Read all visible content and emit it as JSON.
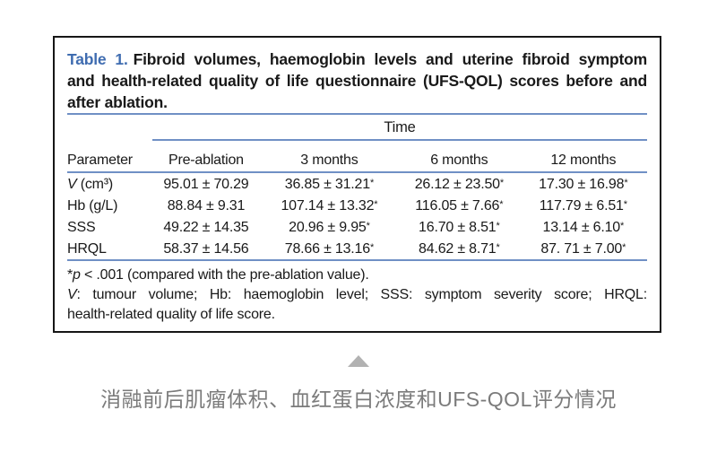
{
  "card": {
    "title": {
      "label": "Table 1.",
      "line1": "Fibroid volumes, haemoglobin levels and uterine fibroid symptom",
      "line2": "and health-related quality of life questionnaire (UFS-QOL) scores before and",
      "line3": "after ablation."
    },
    "spanner": "Time",
    "columns": [
      "Parameter",
      "Pre-ablation",
      "3 months",
      "6 months",
      "12 months"
    ],
    "star_symbol": "*",
    "rows": [
      {
        "param": "V (cm³)",
        "param_italic_first": true,
        "values": [
          {
            "v": "95.01 ± 70.29",
            "star": false
          },
          {
            "v": "36.85 ± 31.21",
            "star": true
          },
          {
            "v": "26.12 ± 23.50",
            "star": true
          },
          {
            "v": "17.30 ± 16.98",
            "star": true
          }
        ]
      },
      {
        "param": "Hb (g/L)",
        "param_italic_first": false,
        "values": [
          {
            "v": "88.84 ± 9.31",
            "star": false
          },
          {
            "v": "107.14 ± 13.32",
            "star": true
          },
          {
            "v": "116.05 ± 7.66",
            "star": true
          },
          {
            "v": "117.79 ± 6.51",
            "star": true
          }
        ]
      },
      {
        "param": "SSS",
        "param_italic_first": false,
        "values": [
          {
            "v": "49.22 ± 14.35",
            "star": false
          },
          {
            "v": "20.96 ± 9.95",
            "star": true
          },
          {
            "v": "16.70 ± 8.51",
            "star": true
          },
          {
            "v": "13.14 ± 6.10",
            "star": true
          }
        ]
      },
      {
        "param": "HRQL",
        "param_italic_first": false,
        "values": [
          {
            "v": "58.37 ± 14.56",
            "star": false
          },
          {
            "v": "78.66 ± 13.16",
            "star": true
          },
          {
            "v": "84.62 ± 8.71",
            "star": true
          },
          {
            "v": "87. 71 ± 7.00",
            "star": true
          }
        ]
      }
    ],
    "footnotes": {
      "f1_star": "*",
      "f1_p": "p",
      "f1_rest": " < .001 (compared with the pre-ablation value).",
      "f2_v": "V",
      "f2_line1_rest": ": tumour volume; Hb: haemoglobin level; SSS: symptom severity score; HRQL:",
      "f2_line2": "health-related quality of life score."
    }
  },
  "caption": {
    "text": "消融前后肌瘤体积、血红蛋白浓度和UFS-QOL评分情况",
    "icon": "triangle-up-icon"
  },
  "colors": {
    "title_blue": "#3f6cb0",
    "rule_blue": "#7090c5",
    "border_black": "#161616",
    "caption_gray": "#7b7b7b",
    "triangle_gray": "#b2b2b2"
  }
}
